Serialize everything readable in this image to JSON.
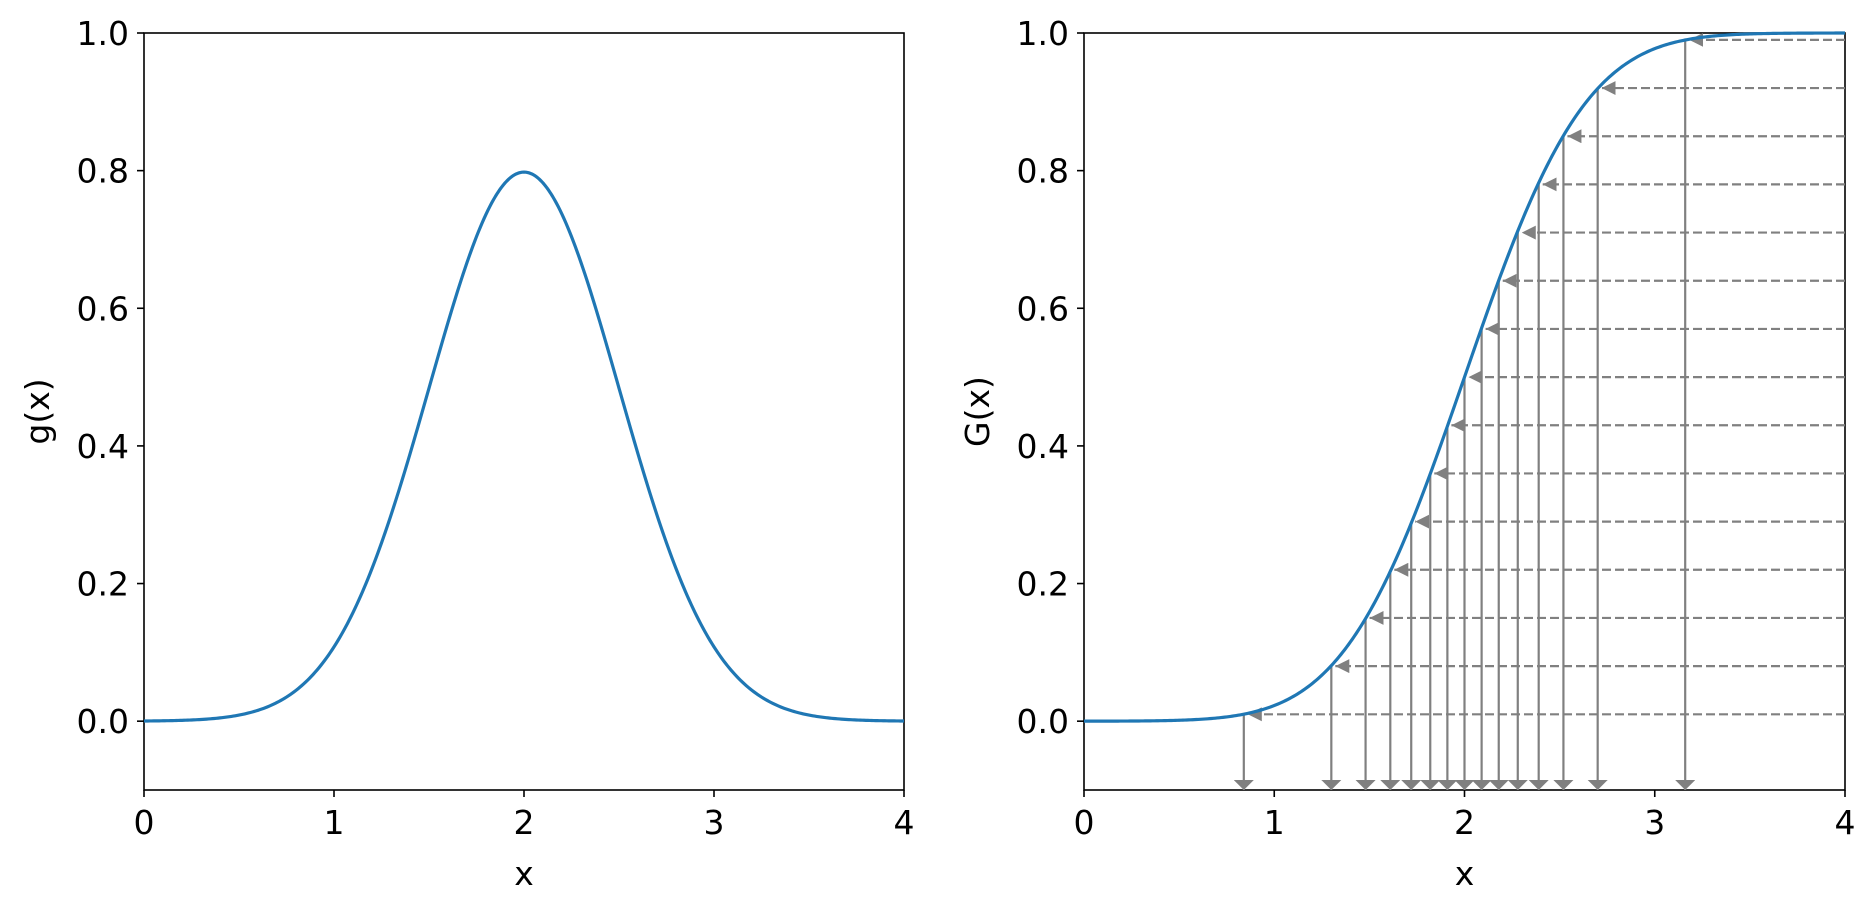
{
  "colors": {
    "curve": "#1f77b4",
    "guide": "#808080",
    "axis": "#000000"
  },
  "chart_data": [
    {
      "type": "line",
      "title": "",
      "xlabel": "x",
      "ylabel": "g(x)",
      "xlim": [
        0,
        4
      ],
      "ylim": [
        -0.1,
        1.0
      ],
      "xticks": [
        "0",
        "1",
        "2",
        "3",
        "4"
      ],
      "yticks": [
        "0.0",
        "0.2",
        "0.4",
        "0.6",
        "0.8",
        "1.0"
      ],
      "grid": false,
      "series": [
        {
          "function": "normal_pdf",
          "mean": 2.0,
          "std": 0.5,
          "x_range": [
            0,
            4
          ],
          "peak": [
            2.0,
            0.798
          ]
        }
      ]
    },
    {
      "type": "line",
      "title": "",
      "xlabel": "x",
      "ylabel": "G(x)",
      "xlim": [
        0,
        4
      ],
      "ylim": [
        -0.1,
        1.0
      ],
      "xticks": [
        "0",
        "1",
        "2",
        "3",
        "4"
      ],
      "yticks": [
        "0.0",
        "0.2",
        "0.4",
        "0.6",
        "0.8",
        "1.0"
      ],
      "grid": false,
      "series": [
        {
          "function": "normal_cdf",
          "mean": 2.0,
          "std": 0.5,
          "x_range": [
            0,
            4
          ]
        }
      ],
      "inverse_sampling_arrows": {
        "u_values": [
          0.01,
          0.08,
          0.15,
          0.22,
          0.29,
          0.36,
          0.43,
          0.5,
          0.57,
          0.64,
          0.71,
          0.78,
          0.85,
          0.92,
          0.99
        ],
        "x_values": [
          0.84,
          1.3,
          1.48,
          1.61,
          1.72,
          1.82,
          1.91,
          2.0,
          2.09,
          2.18,
          2.28,
          2.39,
          2.52,
          2.7,
          3.16
        ],
        "horizontal_from_x": 4.0,
        "vertical_to_y": -0.1
      }
    }
  ]
}
